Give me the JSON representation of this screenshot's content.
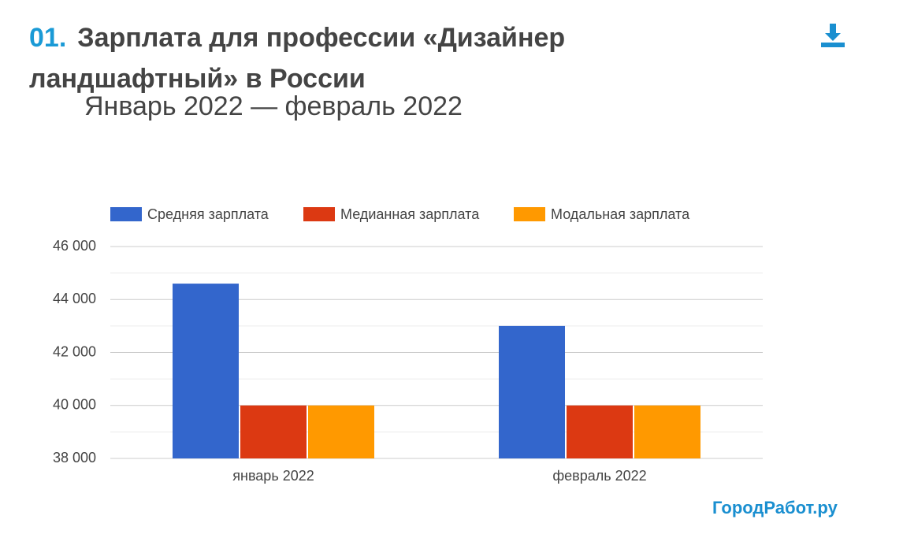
{
  "header": {
    "number": "01.",
    "title": "Зарплата для профессии «Дизайнер ландшафтный» в России",
    "subtitle": "Январь 2022 — февраль 2022"
  },
  "chart_data": {
    "type": "bar",
    "categories": [
      "январь 2022",
      "февраль 2022"
    ],
    "series": [
      {
        "name": "Средняя зарплата",
        "color": "#3366cc",
        "values": [
          44600,
          43000
        ]
      },
      {
        "name": "Медианная зарплата",
        "color": "#dc3912",
        "values": [
          40000,
          40000
        ]
      },
      {
        "name": "Модальная зарплата",
        "color": "#ff9900",
        "values": [
          40000,
          40000
        ]
      }
    ],
    "ylim": [
      38000,
      46000
    ],
    "yticks": [
      {
        "value": 38000,
        "label": "38 000"
      },
      {
        "value": 40000,
        "label": "40 000"
      },
      {
        "value": 42000,
        "label": "42 000"
      },
      {
        "value": 44000,
        "label": "44 000"
      },
      {
        "value": 46000,
        "label": "46 000"
      }
    ],
    "minor_yticks": [
      39000,
      41000,
      43000,
      45000
    ],
    "grid": true,
    "legend": "top"
  },
  "footer": {
    "logo": "ГородРабот.ру"
  }
}
